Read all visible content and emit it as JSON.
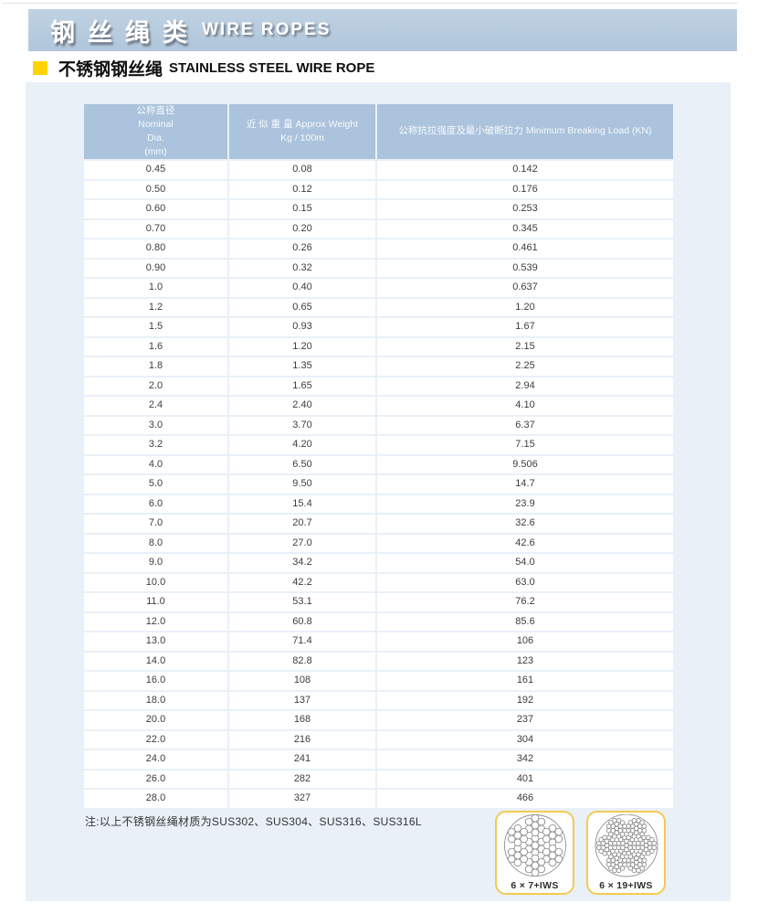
{
  "banner": {
    "title_zh": "钢丝绳类",
    "title_en": "WIRE ROPES"
  },
  "section": {
    "title_zh": "不锈钢钢丝绳",
    "title_en": "STAINLESS STEEL WIRE ROPE"
  },
  "table": {
    "columns": [
      {
        "lines": [
          "公称直径",
          "Nominal",
          "Dia.",
          "(mm)"
        ]
      },
      {
        "lines": [
          "近 似 重 量 Approx Weight",
          "Kg / 100m"
        ]
      },
      {
        "lines": [
          "公称抗拉强度及最小破断拉力 Minimum Breaking Load (KN)"
        ]
      }
    ],
    "rows": [
      [
        "0.45",
        "0.08",
        "0.142"
      ],
      [
        "0.50",
        "0.12",
        "0.176"
      ],
      [
        "0.60",
        "0.15",
        "0.253"
      ],
      [
        "0.70",
        "0.20",
        "0.345"
      ],
      [
        "0.80",
        "0.26",
        "0.461"
      ],
      [
        "0.90",
        "0.32",
        "0.539"
      ],
      [
        "1.0",
        "0.40",
        "0.637"
      ],
      [
        "1.2",
        "0.65",
        "1.20"
      ],
      [
        "1.5",
        "0.93",
        "1.67"
      ],
      [
        "1.6",
        "1.20",
        "2.15"
      ],
      [
        "1.8",
        "1.35",
        "2.25"
      ],
      [
        "2.0",
        "1.65",
        "2.94"
      ],
      [
        "2.4",
        "2.40",
        "4.10"
      ],
      [
        "3.0",
        "3.70",
        "6.37"
      ],
      [
        "3.2",
        "4.20",
        "7.15"
      ],
      [
        "4.0",
        "6.50",
        "9.506"
      ],
      [
        "5.0",
        "9.50",
        "14.7"
      ],
      [
        "6.0",
        "15.4",
        "23.9"
      ],
      [
        "7.0",
        "20.7",
        "32.6"
      ],
      [
        "8.0",
        "27.0",
        "42.6"
      ],
      [
        "9.0",
        "34.2",
        "54.0"
      ],
      [
        "10.0",
        "42.2",
        "63.0"
      ],
      [
        "11.0",
        "53.1",
        "76.2"
      ],
      [
        "12.0",
        "60.8",
        "85.6"
      ],
      [
        "13.0",
        "71.4",
        "106"
      ],
      [
        "14.0",
        "82.8",
        "123"
      ],
      [
        "16.0",
        "108",
        "161"
      ],
      [
        "18.0",
        "137",
        "192"
      ],
      [
        "20.0",
        "168",
        "237"
      ],
      [
        "22.0",
        "216",
        "304"
      ],
      [
        "24.0",
        "241",
        "342"
      ],
      [
        "26.0",
        "282",
        "401"
      ],
      [
        "28.0",
        "327",
        "466"
      ]
    ]
  },
  "note": "注:以上不锈钢丝绳材质为SUS302、SUS304、SUS316、SUS316L",
  "rope_cards": [
    {
      "label": "6 × 7+IWS",
      "construction": "6x7"
    },
    {
      "label": "6 × 19+IWS",
      "construction": "6x19"
    }
  ],
  "colors": {
    "banner_bg": "#b6cade",
    "table_header_bg": "#abc3dc",
    "panel_bg": "#eaf0f8",
    "accent_yellow": "#ffd400",
    "card_border": "#f2ca52"
  }
}
